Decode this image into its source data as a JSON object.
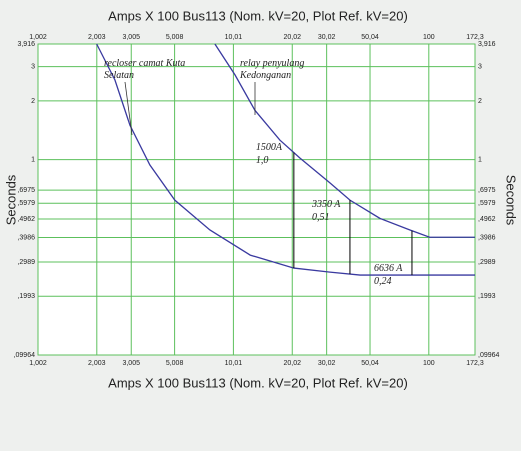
{
  "chart_data": {
    "type": "line",
    "x_label": "Amps  X  100   Bus113 (Nom. kV=20, Plot Ref. kV=20)",
    "ylabel": "Seconds",
    "log_x": true,
    "log_y": true,
    "grid": true,
    "xlim": [
      1.002,
      172.3
    ],
    "xticks": [
      {
        "value": 1.002,
        "label": "1,002"
      },
      {
        "value": 2.003,
        "label": "2,003"
      },
      {
        "value": 3.005,
        "label": "3,005"
      },
      {
        "value": 5.008,
        "label": "5,008"
      },
      {
        "value": 10.01,
        "label": "10,01"
      },
      {
        "value": 20.02,
        "label": "20,02"
      },
      {
        "value": 30.02,
        "label": "30,02"
      },
      {
        "value": 50.04,
        "label": "50,04"
      },
      100,
      {
        "value": 172.3,
        "label": "172,3"
      }
    ],
    "ylim": [
      0.09964,
      3.916
    ],
    "yticks": [
      {
        "value": 3.916,
        "label": "3,916"
      },
      3,
      2,
      1,
      {
        "value": 0.6975,
        "label": ",6975"
      },
      {
        "value": 0.5979,
        "label": ",5979"
      },
      {
        "value": 0.4962,
        "label": ",4962"
      },
      {
        "value": 0.3986,
        "label": ",3986"
      },
      {
        "value": 0.2989,
        "label": ",2989"
      },
      {
        "value": 0.1993,
        "label": ",1993"
      },
      {
        "value": 0.09964,
        "label": ",09964"
      }
    ],
    "series": [
      {
        "name": "recloser camat Kuta Selatan",
        "color": "#3a3aa0",
        "x": [
          2.0,
          2.48,
          2.96,
          3.74,
          5.02,
          7.59,
          12.2,
          20.4,
          31.2,
          44.5,
          172.3
        ],
        "values": [
          3.916,
          2.56,
          1.5,
          0.94,
          0.62,
          0.436,
          0.324,
          0.278,
          0.265,
          0.256,
          0.256
        ]
      },
      {
        "name": "relay penyulang Kedonganan",
        "color": "#3a3aa0",
        "x": [
          8.05,
          10.2,
          12.9,
          17.3,
          21.9,
          31.2,
          39.5,
          56.2,
          80.1,
          101,
          172.3
        ],
        "values": [
          3.916,
          2.72,
          1.79,
          1.26,
          1.02,
          0.76,
          0.62,
          0.5,
          0.436,
          0.4,
          0.4
        ]
      }
    ],
    "markers": [
      {
        "label": "1500A",
        "value_label": "1,0",
        "x": 20.4,
        "y": 1.0
      },
      {
        "label": "3350 A",
        "value_label": "0,51",
        "x": 39.5,
        "y": 0.51
      },
      {
        "label": "6636 A",
        "value_label": "0,24",
        "x": 82,
        "y": 0.24
      }
    ]
  }
}
